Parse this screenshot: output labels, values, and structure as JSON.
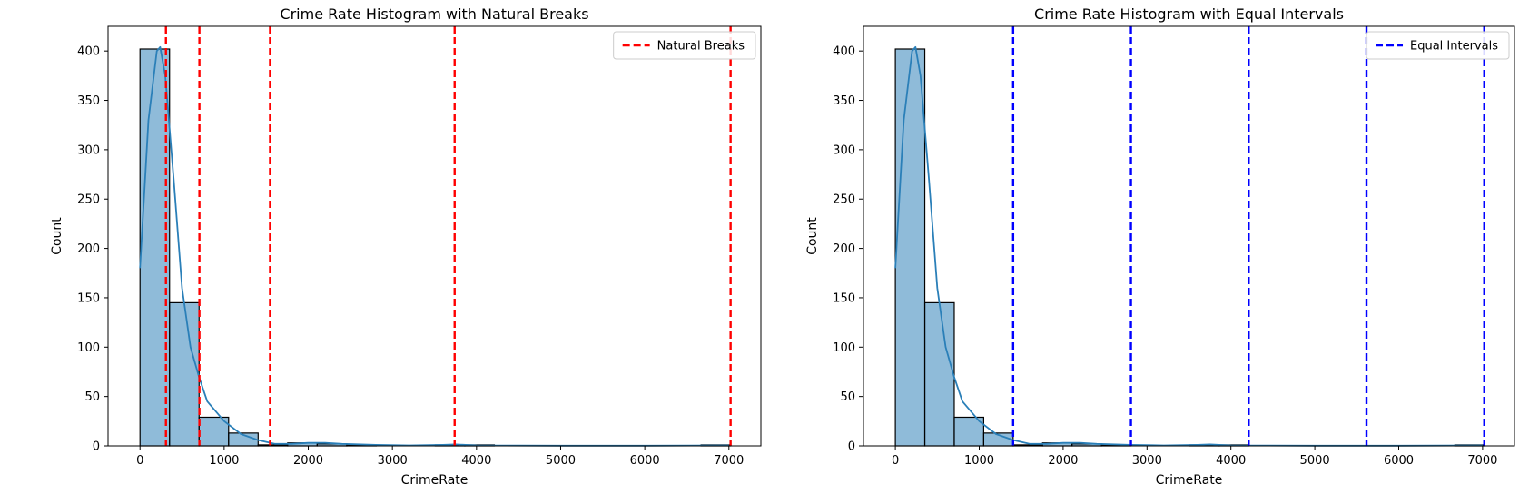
{
  "chart_data": [
    {
      "type": "bar",
      "title": "Crime Rate Histogram with Natural Breaks",
      "xlabel": "CrimeRate",
      "ylabel": "Count",
      "xlim": [
        -380,
        7380
      ],
      "ylim": [
        0,
        425
      ],
      "xticks": [
        0,
        1000,
        2000,
        3000,
        4000,
        5000,
        6000,
        7000
      ],
      "yticks": [
        0,
        50,
        100,
        150,
        200,
        250,
        300,
        350,
        400
      ],
      "bin_edges": [
        0,
        351,
        702,
        1053,
        1404,
        1755,
        2106,
        2457,
        2808,
        3159,
        3510,
        3861,
        4212,
        4563,
        4914,
        5265,
        5616,
        5967,
        6318,
        6669,
        7020
      ],
      "counts": [
        402,
        145,
        29,
        13,
        1,
        3,
        2,
        1,
        0,
        0,
        1,
        1,
        0,
        0,
        0,
        0,
        0,
        0,
        0,
        1
      ],
      "bar_color": "#1f77b4",
      "kde": {
        "color": "#2a7fb8",
        "x": [
          0,
          100,
          200,
          240,
          300,
          400,
          500,
          600,
          700,
          800,
          1000,
          1200,
          1400,
          1600,
          1800,
          2000,
          2200,
          2400,
          2800,
          3200,
          3600,
          3750,
          4000,
          5000,
          6000,
          7000
        ],
        "y": [
          180,
          330,
          400,
          404,
          375,
          270,
          160,
          100,
          70,
          45,
          25,
          12,
          6,
          2,
          2,
          3,
          3,
          2,
          1,
          0.5,
          1,
          1.5,
          0.5,
          0.2,
          0.2,
          0.5
        ]
      },
      "breaks": {
        "name": "Natural Breaks",
        "color": "#ff0000",
        "values": [
          308,
          706,
          1546,
          3740,
          7020
        ]
      },
      "legend": "top-right",
      "grid": false
    },
    {
      "type": "bar",
      "title": "Crime Rate Histogram with Equal Intervals",
      "xlabel": "CrimeRate",
      "ylabel": "Count",
      "xlim": [
        -380,
        7380
      ],
      "ylim": [
        0,
        425
      ],
      "xticks": [
        0,
        1000,
        2000,
        3000,
        4000,
        5000,
        6000,
        7000
      ],
      "yticks": [
        0,
        50,
        100,
        150,
        200,
        250,
        300,
        350,
        400
      ],
      "bin_edges": [
        0,
        351,
        702,
        1053,
        1404,
        1755,
        2106,
        2457,
        2808,
        3159,
        3510,
        3861,
        4212,
        4563,
        4914,
        5265,
        5616,
        5967,
        6318,
        6669,
        7020
      ],
      "counts": [
        402,
        145,
        29,
        13,
        1,
        3,
        2,
        1,
        0,
        0,
        1,
        1,
        0,
        0,
        0,
        0,
        0,
        0,
        0,
        1
      ],
      "bar_color": "#1f77b4",
      "kde": {
        "color": "#2a7fb8",
        "x": [
          0,
          100,
          200,
          240,
          300,
          400,
          500,
          600,
          700,
          800,
          1000,
          1200,
          1400,
          1600,
          1800,
          2000,
          2200,
          2400,
          2800,
          3200,
          3600,
          3750,
          4000,
          5000,
          6000,
          7000
        ],
        "y": [
          180,
          330,
          400,
          404,
          375,
          270,
          160,
          100,
          70,
          45,
          25,
          12,
          6,
          2,
          2,
          3,
          3,
          2,
          1,
          0.5,
          1,
          1.5,
          0.5,
          0.2,
          0.2,
          0.5
        ]
      },
      "breaks": {
        "name": "Equal Intervals",
        "color": "#0000ff",
        "values": [
          1404,
          2808,
          4212,
          5616,
          7020
        ]
      },
      "legend": "top-right",
      "grid": false
    }
  ]
}
